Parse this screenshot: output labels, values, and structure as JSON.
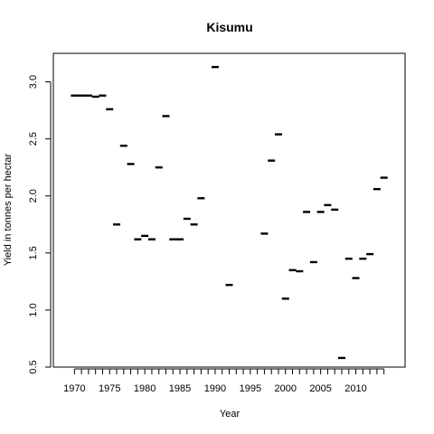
{
  "chart_data": {
    "type": "scatter",
    "title": "Kisumu",
    "xlabel": "Year",
    "ylabel": "Yield in tonnes per hectar",
    "xlim": [
      1967,
      2017
    ],
    "ylim": [
      0.5,
      3.25
    ],
    "x_ticks": [
      1970,
      1975,
      1980,
      1985,
      1990,
      1995,
      2000,
      2005,
      2010
    ],
    "x_minor_ticks": [
      1970,
      1971,
      1972,
      1973,
      1974,
      1975,
      1976,
      1977,
      1978,
      1979,
      1980,
      1981,
      1982,
      1983,
      1984,
      1985,
      1986,
      1987,
      1988,
      1989,
      1990,
      1991,
      1992,
      1993,
      1994,
      1995,
      1996,
      1997,
      1998,
      1999,
      2000,
      2001,
      2002,
      2003,
      2004,
      2005,
      2006,
      2007,
      2008,
      2009,
      2010,
      2011,
      2012,
      2013,
      2014
    ],
    "y_ticks": [
      0.5,
      1.0,
      1.5,
      2.0,
      2.5,
      3.0
    ],
    "marker": "dash",
    "points": [
      {
        "x": 1970,
        "y": 2.88
      },
      {
        "x": 1971,
        "y": 2.88
      },
      {
        "x": 1972,
        "y": 2.88
      },
      {
        "x": 1973,
        "y": 2.87
      },
      {
        "x": 1974,
        "y": 2.88
      },
      {
        "x": 1975,
        "y": 2.76
      },
      {
        "x": 1976,
        "y": 1.75
      },
      {
        "x": 1977,
        "y": 2.44
      },
      {
        "x": 1978,
        "y": 2.28
      },
      {
        "x": 1979,
        "y": 1.62
      },
      {
        "x": 1980,
        "y": 1.65
      },
      {
        "x": 1981,
        "y": 1.62
      },
      {
        "x": 1982,
        "y": 2.25
      },
      {
        "x": 1983,
        "y": 2.7
      },
      {
        "x": 1984,
        "y": 1.62
      },
      {
        "x": 1985,
        "y": 1.62
      },
      {
        "x": 1986,
        "y": 1.8
      },
      {
        "x": 1987,
        "y": 1.75
      },
      {
        "x": 1988,
        "y": 1.98
      },
      {
        "x": 1990,
        "y": 3.13
      },
      {
        "x": 1992,
        "y": 1.22
      },
      {
        "x": 1997,
        "y": 1.67
      },
      {
        "x": 1998,
        "y": 2.31
      },
      {
        "x": 1999,
        "y": 2.54
      },
      {
        "x": 2000,
        "y": 1.1
      },
      {
        "x": 2001,
        "y": 1.35
      },
      {
        "x": 2002,
        "y": 1.34
      },
      {
        "x": 2003,
        "y": 1.86
      },
      {
        "x": 2004,
        "y": 1.42
      },
      {
        "x": 2005,
        "y": 1.86
      },
      {
        "x": 2006,
        "y": 1.92
      },
      {
        "x": 2007,
        "y": 1.88
      },
      {
        "x": 2008,
        "y": 0.58
      },
      {
        "x": 2009,
        "y": 1.45
      },
      {
        "x": 2010,
        "y": 1.28
      },
      {
        "x": 2011,
        "y": 1.45
      },
      {
        "x": 2012,
        "y": 1.49
      },
      {
        "x": 2013,
        "y": 2.06
      },
      {
        "x": 2014,
        "y": 2.16
      }
    ],
    "grid": false,
    "legend": "none"
  }
}
